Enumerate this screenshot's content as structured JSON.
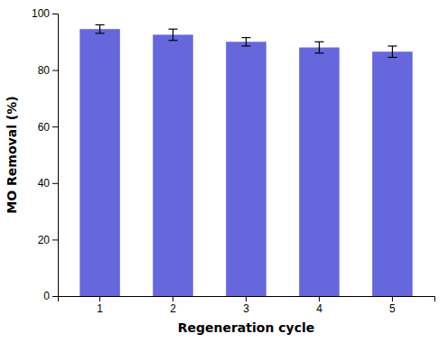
{
  "chart_data": {
    "type": "bar",
    "categories": [
      1,
      2,
      3,
      4,
      5
    ],
    "values": [
      94.5,
      92.5,
      90.0,
      88.0,
      86.5
    ],
    "errors": [
      1.5,
      2.0,
      1.5,
      2.0,
      2.0
    ],
    "color": "#6666dd",
    "xlabel": "Regeneration cycle",
    "ylabel": "MO Removal (%)",
    "ylim": [
      0,
      100
    ],
    "yticks": [
      0,
      20,
      40,
      60,
      80,
      100
    ],
    "grid": false
  }
}
